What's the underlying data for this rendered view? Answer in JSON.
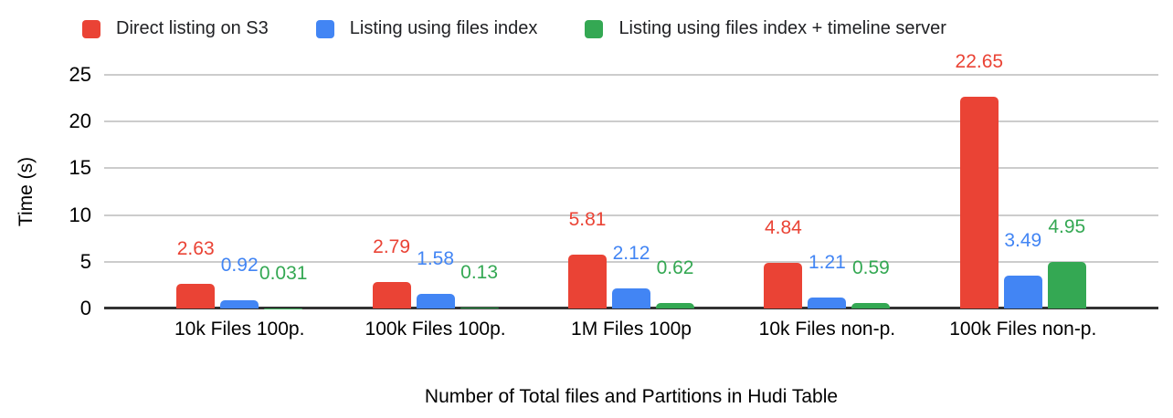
{
  "chart_data": {
    "type": "bar",
    "title": "",
    "categories": [
      "10k Files 100p.",
      "100k Files 100p.",
      "1M Files 100p",
      "10k Files non-p.",
      "100k Files non-p."
    ],
    "series": [
      {
        "name": "Direct listing on S3",
        "color": "#ea4335",
        "values": [
          2.63,
          2.79,
          5.81,
          4.84,
          22.65
        ],
        "labels": [
          "2.63",
          "2.79",
          "5.81",
          "4.84",
          "22.65"
        ]
      },
      {
        "name": "Listing using files index",
        "color": "#4285f4",
        "values": [
          0.92,
          1.58,
          2.12,
          1.21,
          3.49
        ],
        "labels": [
          "0.92",
          "1.58",
          "2.12",
          "1.21",
          "3.49"
        ]
      },
      {
        "name": "Listing using files index + timeline server",
        "color": "#34a853",
        "values": [
          0.031,
          0.13,
          0.62,
          0.59,
          4.95
        ],
        "labels": [
          "0.031",
          "0.13",
          "0.62",
          "0.59",
          "4.95"
        ]
      }
    ],
    "xlabel": "Number of Total files and Partitions in Hudi Table",
    "ylabel": "Time (s)",
    "ylim": [
      0,
      25
    ],
    "yticks": [
      0,
      5,
      10,
      15,
      20,
      25
    ],
    "grid": true,
    "legend_position": "top"
  },
  "colors": {
    "gridline": "#cccccc",
    "baseline": "#333333",
    "text": "#000000",
    "background": "#ffffff"
  }
}
